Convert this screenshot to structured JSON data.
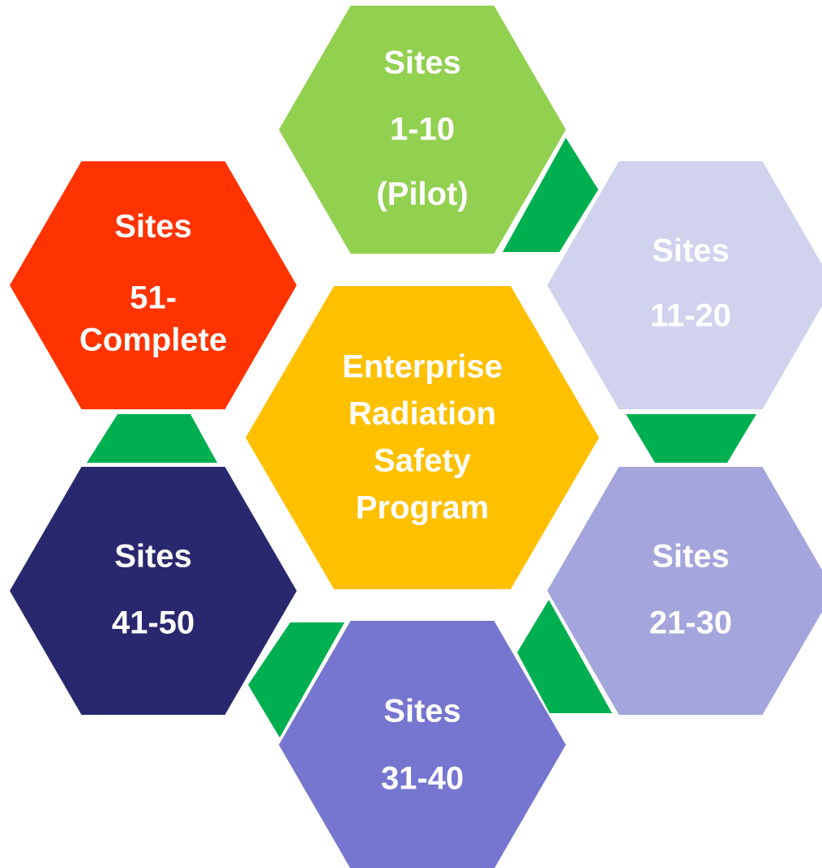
{
  "center": {
    "lines": [
      "Enterprise",
      "Radiation",
      "Safety",
      "Program"
    ]
  },
  "nodes": [
    {
      "lines": [
        "Sites",
        "1-10",
        "(Pilot)"
      ]
    },
    {
      "lines": [
        "Sites",
        "11-20"
      ]
    },
    {
      "lines": [
        "Sites",
        "21-30"
      ]
    },
    {
      "lines": [
        "Sites",
        "31-40"
      ]
    },
    {
      "lines": [
        "Sites",
        "41-50"
      ]
    },
    {
      "lines": [
        "Sites",
        "51-",
        "Complete"
      ]
    }
  ]
}
